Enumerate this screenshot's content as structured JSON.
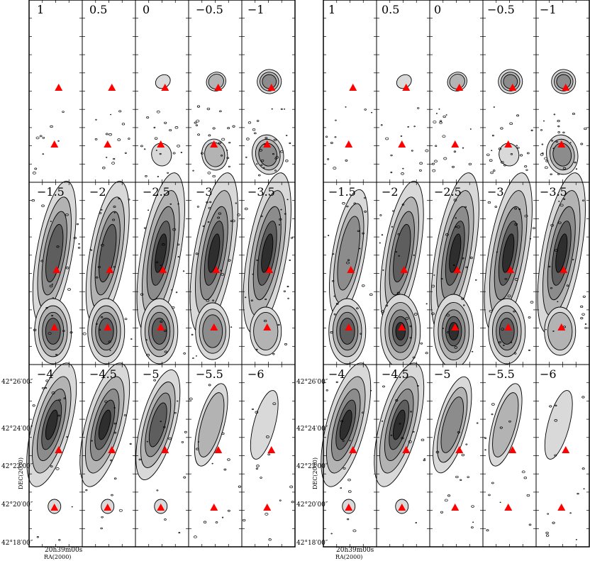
{
  "left_block": {
    "rows": [
      [
        "1",
        "0.5",
        "0",
        "−0.5",
        "−1"
      ],
      [
        "−1.5",
        "−2",
        "−2.5",
        "−3",
        "−3.5"
      ],
      [
        "−4",
        "−4.5",
        "−5",
        "−5.5",
        "−6"
      ]
    ]
  },
  "right_block": {
    "rows": [
      [
        "1",
        "0.5",
        "0",
        "−0.5",
        "−1"
      ],
      [
        "−1.5",
        "−2",
        "−2.5",
        "−3",
        "−3.5"
      ],
      [
        "−4",
        "−4.5",
        "−5",
        "−5.5",
        "−6"
      ]
    ]
  },
  "axes": {
    "dec_ticks": [
      "42°26′00″",
      "42°24′00″",
      "42°22′00″",
      "42°20′00″",
      "42°18′00″"
    ],
    "dec_label": "DEC(2000)",
    "ra_tick": "20h39m00s",
    "ra_label": "RA(2000)"
  },
  "colors": {
    "marker": "#ff0000",
    "contour": "#000000",
    "frame": "#000000"
  }
}
